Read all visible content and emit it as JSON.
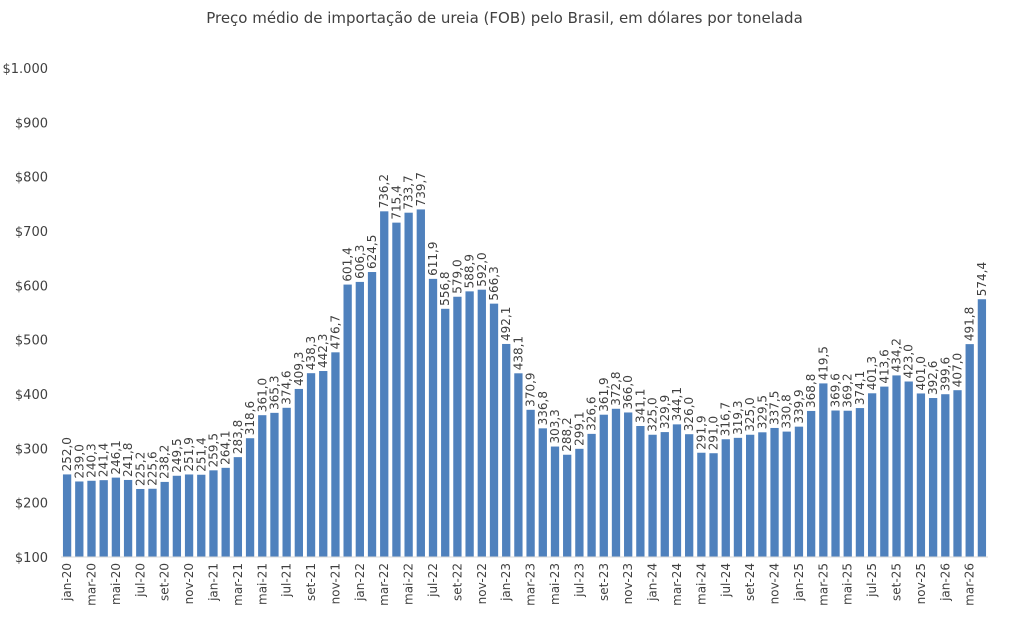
{
  "chart_data": {
    "type": "bar",
    "title": "Preço médio de importação de ureia (FOB) pelo Brasil, em dólares por tonelada",
    "xlabel": "",
    "ylabel": "",
    "ylim": [
      100,
      1000
    ],
    "yticks": [
      "$100",
      "$200",
      "$300",
      "$400",
      "$500",
      "$600",
      "$700",
      "$800",
      "$900",
      "$1.000"
    ],
    "ytick_values": [
      100,
      200,
      300,
      400,
      500,
      600,
      700,
      800,
      900,
      1000
    ],
    "grid": false,
    "legend": "none",
    "bar_color": "#4F81BD",
    "categories": [
      "jan-20",
      "fev-20",
      "mar-20",
      "abr-20",
      "mai-20",
      "jun-20",
      "jul-20",
      "ago-20",
      "set-20",
      "out-20",
      "nov-20",
      "dez-20",
      "jan-21",
      "fev-21",
      "mar-21",
      "abr-21",
      "mai-21",
      "jun-21",
      "jul-21",
      "ago-21",
      "set-21",
      "out-21",
      "nov-21",
      "dez-21",
      "jan-22",
      "fev-22",
      "mar-22",
      "abr-22",
      "mai-22",
      "jun-22",
      "jul-22",
      "ago-22",
      "set-22",
      "out-22",
      "nov-22",
      "dez-22",
      "jan-23",
      "fev-23",
      "mar-23",
      "abr-23",
      "mai-23",
      "jun-23",
      "jul-23",
      "ago-23",
      "set-23",
      "out-23",
      "nov-23",
      "dez-23",
      "jan-24",
      "fev-24",
      "mar-24",
      "abr-24",
      "mai-24",
      "jun-24",
      "jul-24",
      "ago-24",
      "set-24",
      "out-24",
      "nov-24",
      "dez-24",
      "jan-25",
      "fev-25",
      "mar-25",
      "abr-25",
      "mai-25",
      "jun-25",
      "jul-25",
      "ago-25",
      "set-25",
      "out-25",
      "nov-25",
      "dez-25",
      "jan-26",
      "fev-26",
      "mar-26",
      "abr-26"
    ],
    "shown_ticks": [
      "jan-20",
      "mar-20",
      "mai-20",
      "jul-20",
      "set-20",
      "nov-20",
      "jan-21",
      "mar-21",
      "mai-21",
      "jul-21",
      "set-21",
      "nov-21",
      "jan-22",
      "mar-22",
      "mai-22",
      "jul-22",
      "set-22",
      "nov-22",
      "jan-23",
      "mar-23",
      "mai-23",
      "jul-23",
      "set-23",
      "nov-23",
      "jan-24",
      "mar-24",
      "mai-24",
      "jul-24",
      "set-24",
      "nov-24",
      "jan-25",
      "mar-25",
      "mai-25",
      "jul-25",
      "set-25",
      "nov-25",
      "jan-26",
      "mar-26"
    ],
    "values": [
      252.0,
      239.0,
      240.3,
      241.4,
      246.1,
      241.8,
      225.2,
      225.6,
      238.2,
      249.5,
      251.9,
      251.4,
      259.5,
      264.1,
      283.8,
      318.6,
      361.0,
      365.3,
      374.6,
      409.3,
      438.3,
      442.3,
      476.7,
      601.4,
      606.3,
      624.5,
      736.2,
      715.4,
      733.7,
      739.7,
      611.9,
      556.8,
      579.0,
      588.9,
      592.0,
      566.3,
      492.1,
      438.1,
      370.9,
      336.8,
      303.3,
      288.2,
      299.1,
      326.6,
      361.9,
      372.8,
      366.0,
      341.1,
      325.0,
      329.9,
      344.1,
      326.0,
      291.9,
      291.0,
      316.7,
      319.3,
      325.0,
      329.5,
      337.5,
      330.8,
      339.9,
      368.8,
      419.5,
      369.6,
      369.2,
      374.1,
      401.3,
      413.6,
      434.2,
      423.0,
      401.0,
      392.6,
      399.6,
      407.0,
      491.8,
      574.4
    ],
    "labels": [
      "252,0",
      "239,0",
      "240,3",
      "241,4",
      "246,1",
      "241,8",
      "225,2",
      "225,6",
      "238,2",
      "249,5",
      "251,9",
      "251,4",
      "259,5",
      "264,1",
      "283,8",
      "318,6",
      "361,0",
      "365,3",
      "374,6",
      "409,3",
      "438,3",
      "442,3",
      "476,7",
      "601,4",
      "606,3",
      "624,5",
      "736,2",
      "715,4",
      "733,7",
      "739,7",
      "611,9",
      "556,8",
      "579,0",
      "588,9",
      "592,0",
      "566,3",
      "492,1",
      "438,1",
      "370,9",
      "336,8",
      "303,3",
      "288,2",
      "299,1",
      "326,6",
      "361,9",
      "372,8",
      "366,0",
      "341,1",
      "325,0",
      "329,9",
      "344,1",
      "326,0",
      "291,9",
      "291,0",
      "316,7",
      "319,3",
      "325,0",
      "329,5",
      "337,5",
      "330,8",
      "339,9",
      "368,8",
      "419,5",
      "369,6",
      "369,2",
      "374,1",
      "401,3",
      "413,6",
      "434,2",
      "423,0",
      "401,0",
      "392,6",
      "399,6",
      "407,0",
      "491,8",
      "574,4"
    ]
  }
}
